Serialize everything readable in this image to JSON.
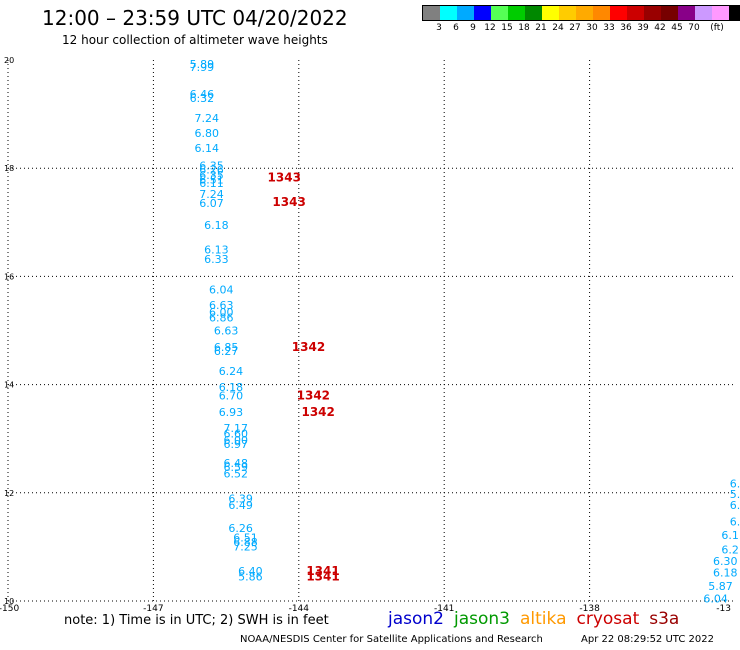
{
  "title": "12:00 – 23:59 UTC 04/20/2022",
  "subtitle": "12 hour collection of altimeter wave heights",
  "legend": {
    "unit": "(ft)",
    "colors": [
      "#808080",
      "#00ffff",
      "#00aaff",
      "#0000ff",
      "#55ff55",
      "#00cc00",
      "#008800",
      "#ffff00",
      "#ffcc00",
      "#ffaa00",
      "#ff8800",
      "#ff0000",
      "#cc0000",
      "#990000",
      "#770000",
      "#880088",
      "#cc99ff",
      "#ff99ff",
      "#000000"
    ],
    "labels": [
      "3",
      "6",
      "9",
      "12",
      "15",
      "18",
      "21",
      "24",
      "27",
      "30",
      "33",
      "36",
      "39",
      "42",
      "45",
      "70"
    ]
  },
  "map": {
    "lon_ticks": [
      "-150",
      "-147",
      "-144",
      "-141",
      "-138",
      "-13"
    ],
    "lat_ticks": [
      "20",
      "18",
      "16",
      "14",
      "12",
      "10"
    ],
    "lon_range": [
      -150,
      -135
    ],
    "lat_range": [
      10,
      20
    ]
  },
  "observations": [
    {
      "lon": -146.0,
      "lat": 19.85,
      "value": "5.89",
      "color": "#00aaff"
    },
    {
      "lon": -146.0,
      "lat": 19.8,
      "value": "7.99",
      "color": "#00aaff"
    },
    {
      "lon": -146.0,
      "lat": 19.3,
      "value": "6.46",
      "color": "#00aaff"
    },
    {
      "lon": -146.0,
      "lat": 19.22,
      "value": "6.32",
      "color": "#00aaff"
    },
    {
      "lon": -145.9,
      "lat": 18.85,
      "value": "7.24",
      "color": "#00aaff"
    },
    {
      "lon": -145.9,
      "lat": 18.58,
      "value": "6.80",
      "color": "#00aaff"
    },
    {
      "lon": -145.9,
      "lat": 18.3,
      "value": "6.14",
      "color": "#00aaff"
    },
    {
      "lon": -145.8,
      "lat": 17.98,
      "value": "6.35",
      "color": "#00aaff"
    },
    {
      "lon": -145.8,
      "lat": 17.9,
      "value": "6.26",
      "color": "#00aaff"
    },
    {
      "lon": -145.8,
      "lat": 17.8,
      "value": "6.35",
      "color": "#00aaff"
    },
    {
      "lon": -145.8,
      "lat": 17.72,
      "value": "6.51",
      "color": "#00aaff"
    },
    {
      "lon": -145.8,
      "lat": 17.65,
      "value": "6.11",
      "color": "#00aaff"
    },
    {
      "lon": -145.8,
      "lat": 17.45,
      "value": "7.24",
      "color": "#00aaff"
    },
    {
      "lon": -145.8,
      "lat": 17.28,
      "value": "6.07",
      "color": "#00aaff"
    },
    {
      "lon": -144.3,
      "lat": 17.75,
      "value": "1343",
      "color": "#cc0000"
    },
    {
      "lon": -144.2,
      "lat": 17.3,
      "value": "1343",
      "color": "#cc0000"
    },
    {
      "lon": -145.7,
      "lat": 16.88,
      "value": "6.18",
      "color": "#00aaff"
    },
    {
      "lon": -145.7,
      "lat": 16.42,
      "value": "6.13",
      "color": "#00aaff"
    },
    {
      "lon": -145.7,
      "lat": 16.25,
      "value": "6.33",
      "color": "#00aaff"
    },
    {
      "lon": -145.6,
      "lat": 15.68,
      "value": "6.04",
      "color": "#00aaff"
    },
    {
      "lon": -145.6,
      "lat": 15.4,
      "value": "6.63",
      "color": "#00aaff"
    },
    {
      "lon": -145.6,
      "lat": 15.27,
      "value": "6.00",
      "color": "#00aaff"
    },
    {
      "lon": -145.6,
      "lat": 15.17,
      "value": "6.86",
      "color": "#00aaff"
    },
    {
      "lon": -145.5,
      "lat": 14.93,
      "value": "6.63",
      "color": "#00aaff"
    },
    {
      "lon": -145.5,
      "lat": 14.62,
      "value": "6.85",
      "color": "#00aaff"
    },
    {
      "lon": -145.5,
      "lat": 14.55,
      "value": "6.27",
      "color": "#00aaff"
    },
    {
      "lon": -143.8,
      "lat": 14.62,
      "value": "1342",
      "color": "#cc0000"
    },
    {
      "lon": -145.4,
      "lat": 14.18,
      "value": "6.24",
      "color": "#00aaff"
    },
    {
      "lon": -145.4,
      "lat": 13.88,
      "value": "6.18",
      "color": "#00aaff"
    },
    {
      "lon": -145.4,
      "lat": 13.72,
      "value": "6.70",
      "color": "#00aaff"
    },
    {
      "lon": -143.7,
      "lat": 13.72,
      "value": "1342",
      "color": "#cc0000"
    },
    {
      "lon": -145.4,
      "lat": 13.42,
      "value": "6.93",
      "color": "#00aaff"
    },
    {
      "lon": -143.6,
      "lat": 13.42,
      "value": "1342",
      "color": "#cc0000"
    },
    {
      "lon": -145.3,
      "lat": 13.12,
      "value": "7.17",
      "color": "#00aaff"
    },
    {
      "lon": -145.3,
      "lat": 13.02,
      "value": "6.60",
      "color": "#00aaff"
    },
    {
      "lon": -145.3,
      "lat": 12.9,
      "value": "6.00",
      "color": "#00aaff"
    },
    {
      "lon": -145.3,
      "lat": 12.83,
      "value": "6.97",
      "color": "#00aaff"
    },
    {
      "lon": -145.3,
      "lat": 12.48,
      "value": "6.48",
      "color": "#00aaff"
    },
    {
      "lon": -145.3,
      "lat": 12.4,
      "value": "6.59",
      "color": "#00aaff"
    },
    {
      "lon": -145.3,
      "lat": 12.28,
      "value": "6.52",
      "color": "#00aaff"
    },
    {
      "lon": -145.2,
      "lat": 11.82,
      "value": "6.39",
      "color": "#00aaff"
    },
    {
      "lon": -145.2,
      "lat": 11.7,
      "value": "6.49",
      "color": "#00aaff"
    },
    {
      "lon": -145.2,
      "lat": 11.28,
      "value": "6.26",
      "color": "#00aaff"
    },
    {
      "lon": -145.1,
      "lat": 11.1,
      "value": "6.51",
      "color": "#00aaff"
    },
    {
      "lon": -145.1,
      "lat": 11.02,
      "value": "6.88",
      "color": "#00aaff"
    },
    {
      "lon": -145.1,
      "lat": 10.93,
      "value": "7.25",
      "color": "#00aaff"
    },
    {
      "lon": -145.0,
      "lat": 10.48,
      "value": "6.40",
      "color": "#00aaff"
    },
    {
      "lon": -145.0,
      "lat": 10.38,
      "value": "5.86",
      "color": "#00aaff"
    },
    {
      "lon": -143.5,
      "lat": 10.48,
      "value": "1341",
      "color": "#cc0000"
    },
    {
      "lon": -143.5,
      "lat": 10.38,
      "value": "1341",
      "color": "#cc0000"
    },
    {
      "lon": -135.0,
      "lat": 12.1,
      "value": "6.",
      "color": "#00aaff"
    },
    {
      "lon": -135.0,
      "lat": 11.9,
      "value": "5.",
      "color": "#00aaff"
    },
    {
      "lon": -135.0,
      "lat": 11.7,
      "value": "6.",
      "color": "#00aaff"
    },
    {
      "lon": -135.0,
      "lat": 11.4,
      "value": "6.",
      "color": "#00aaff"
    },
    {
      "lon": -135.1,
      "lat": 11.15,
      "value": "6.1",
      "color": "#00aaff"
    },
    {
      "lon": -135.1,
      "lat": 10.88,
      "value": "6.2",
      "color": "#00aaff"
    },
    {
      "lon": -135.2,
      "lat": 10.67,
      "value": "6.30",
      "color": "#00aaff"
    },
    {
      "lon": -135.2,
      "lat": 10.45,
      "value": "6.18",
      "color": "#00aaff"
    },
    {
      "lon": -135.3,
      "lat": 10.2,
      "value": "5.87",
      "color": "#00aaff"
    },
    {
      "lon": -135.4,
      "lat": 9.97,
      "value": "6.04",
      "color": "#00aaff"
    }
  ],
  "note": "note:  1) Time is in UTC;  2) SWH is in feet",
  "satellites": [
    {
      "name": "jason2",
      "color": "#0000cc"
    },
    {
      "name": "jason3",
      "color": "#009900"
    },
    {
      "name": "altika",
      "color": "#ff9900"
    },
    {
      "name": "cryosat",
      "color": "#cc0000"
    },
    {
      "name": "s3a",
      "color": "#990000"
    }
  ],
  "credit": "NOAA/NESDIS Center for Satellite Applications and Research",
  "timestamp": "Apr 22 08:29:52 UTC 2022"
}
